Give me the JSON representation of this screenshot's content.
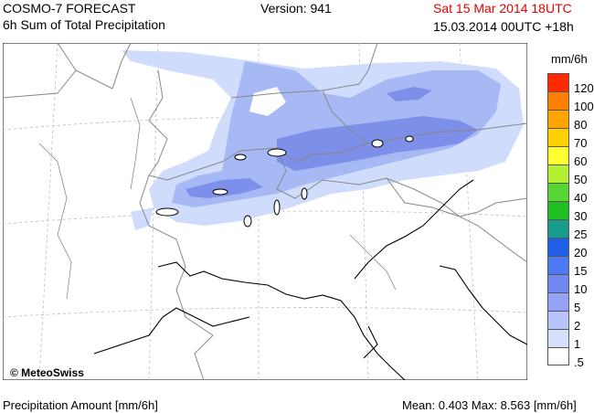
{
  "header": {
    "title": "COSMO-7 FORECAST",
    "subtitle": "6h Sum of Total Precipitation",
    "version": "Version: 941",
    "valid_time": "Sat 15 Mar 2014 18UTC",
    "run_time": "15.03.2014 00UTC +18h"
  },
  "map": {
    "copyright": "© MeteoSwiss"
  },
  "legend": {
    "unit": "mm/6h",
    "labels": [
      "120",
      "100",
      "80",
      "70",
      "60",
      "50",
      "40",
      "30",
      "25",
      "20",
      "15",
      "10",
      "5",
      "2",
      "1",
      ".5"
    ],
    "colors": [
      "#ff2a00",
      "#ff7f00",
      "#ffa500",
      "#ffd000",
      "#ffff33",
      "#b5f033",
      "#55d633",
      "#1fbf1f",
      "#1a9c8c",
      "#1f60e6",
      "#4d7af2",
      "#7088ef",
      "#94a3f5",
      "#b5c4fa",
      "#d6e0fd",
      "#ffffff"
    ]
  },
  "footer": {
    "left": "Precipitation Amount [mm/6h]",
    "right": "Mean:  0.403 Max:  8.563 [mm/6h]"
  },
  "colors": {
    "precip_light": "#cfdcfb",
    "precip_mid": "#a7b9f5",
    "precip_heavy": "#7d8fe8",
    "border": "#999999",
    "coast": "#000000"
  }
}
